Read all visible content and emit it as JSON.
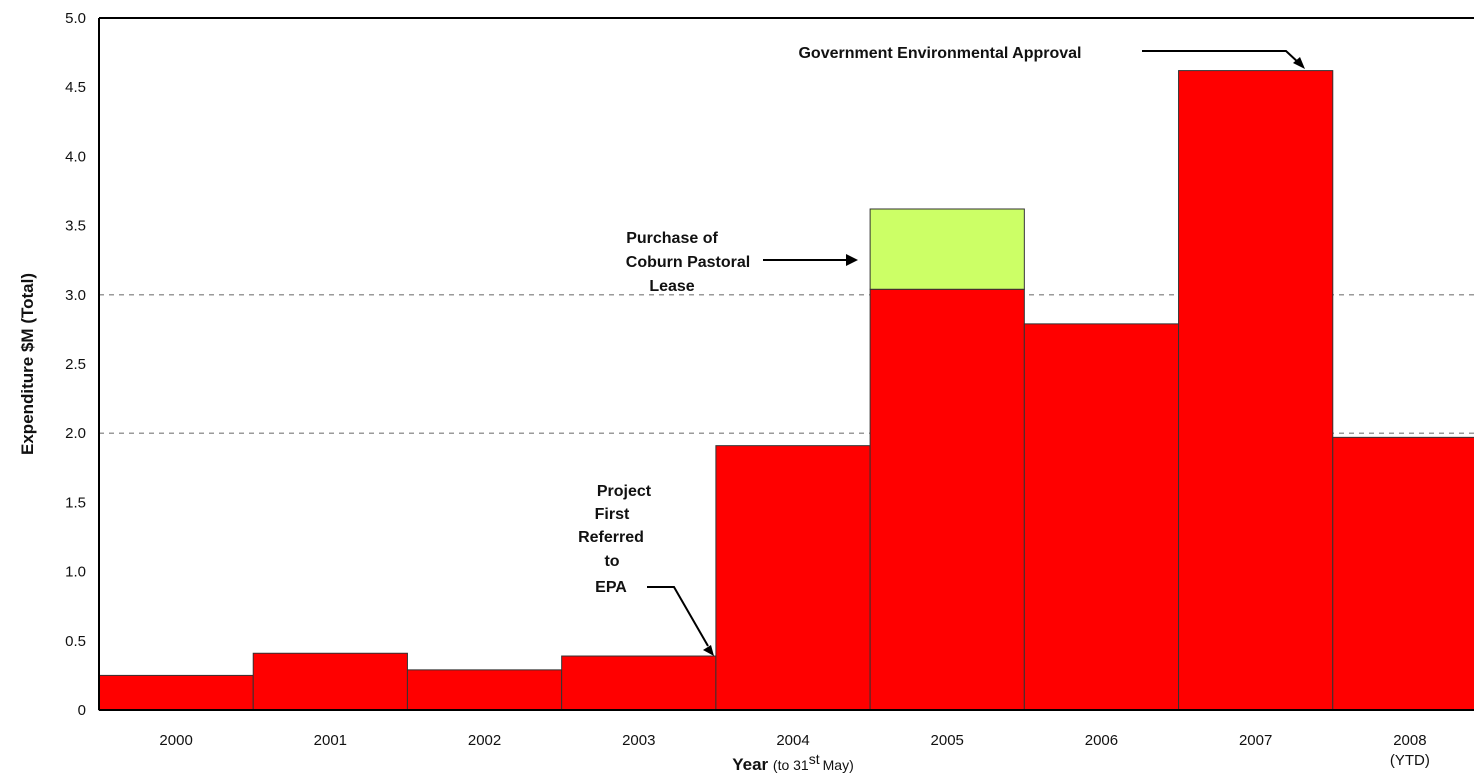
{
  "chart_data": {
    "type": "bar",
    "categories": [
      "2000",
      "2001",
      "2002",
      "2003",
      "2004",
      "2005",
      "2006",
      "2007",
      "2008"
    ],
    "category_sublabels": [
      "",
      "",
      "",
      "",
      "",
      "",
      "",
      "",
      "(YTD)"
    ],
    "series": [
      {
        "values": [
          0.25,
          0.41,
          0.29,
          0.39,
          1.91,
          3.04,
          2.79,
          4.62,
          1.97
        ],
        "color": "#ff0000"
      },
      {
        "values": [
          0,
          0,
          0,
          0,
          0,
          0.58,
          0,
          0,
          0
        ],
        "color": "#ccff66"
      }
    ],
    "stacked": true,
    "ylim": [
      0,
      5.0
    ],
    "yticks": [
      "0",
      "0.5",
      "1.0",
      "1.5",
      "2.0",
      "2.5",
      "3.0",
      "3.5",
      "4.0",
      "4.5",
      "5.0"
    ],
    "ylabel": "Expenditure $M (Total)",
    "xlabel": "Year",
    "xlabel_suffix": "(to 31",
    "xlabel_suffix_sup": "st",
    "xlabel_suffix_end": "May)",
    "gridlines": [
      2.0,
      3.0
    ],
    "gridline_style": "dashed",
    "annotations": [
      {
        "lines": [
          "Government Environmental Approval"
        ],
        "target_category": "2007"
      },
      {
        "lines": [
          "Purchase of",
          "Coburn Pastoral",
          "Lease"
        ],
        "target_category": "2005"
      },
      {
        "lines": [
          "Project",
          "First",
          "Referred",
          "to",
          "EPA"
        ],
        "target_category": "2003"
      }
    ]
  }
}
